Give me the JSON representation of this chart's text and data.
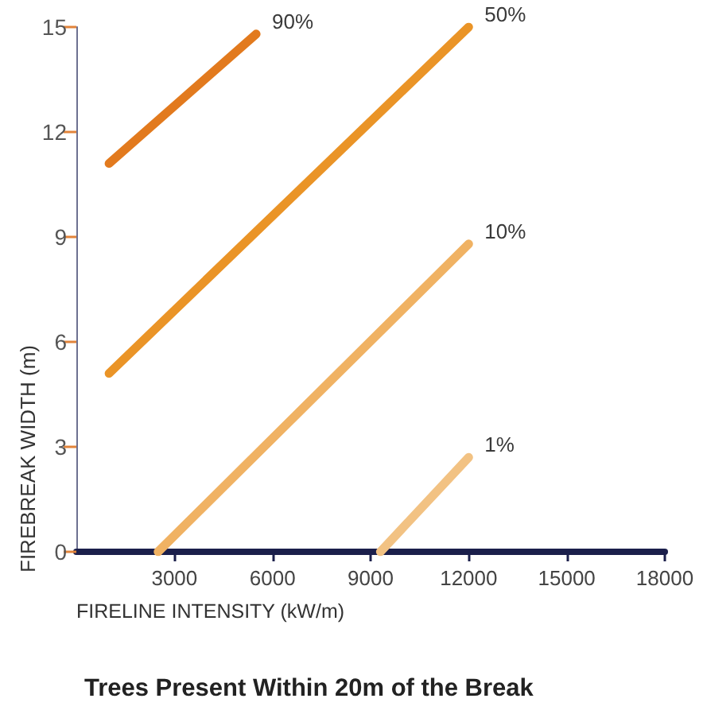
{
  "chart_data": {
    "type": "line",
    "title": "Trees Present Within 20m of the Break",
    "xlabel": "FIRELINE INTENSITY (kW/m)",
    "ylabel": "FIREBREAK WIDTH (m)",
    "series": [
      {
        "name": "90%",
        "color": "#e27a1e",
        "x": [
          1000,
          5500
        ],
        "values": [
          11.1,
          14.8
        ]
      },
      {
        "name": "50%",
        "color": "#ea9427",
        "x": [
          1000,
          12000
        ],
        "values": [
          5.1,
          15
        ]
      },
      {
        "name": "10%",
        "color": "#f0b263",
        "x": [
          2500,
          12000
        ],
        "values": [
          0,
          8.8
        ]
      },
      {
        "name": "1%",
        "color": "#f2c283",
        "x": [
          9300,
          12000
        ],
        "values": [
          0,
          2.7
        ]
      }
    ],
    "xlim": [
      0,
      18000
    ],
    "xticks": [
      3000,
      6000,
      9000,
      12000,
      15000,
      18000
    ],
    "ylim": [
      0,
      15
    ],
    "yticks": [
      0,
      3,
      6,
      9,
      12,
      15
    ],
    "grid": false,
    "legend": false,
    "marker": "none",
    "line_style": "solid"
  }
}
